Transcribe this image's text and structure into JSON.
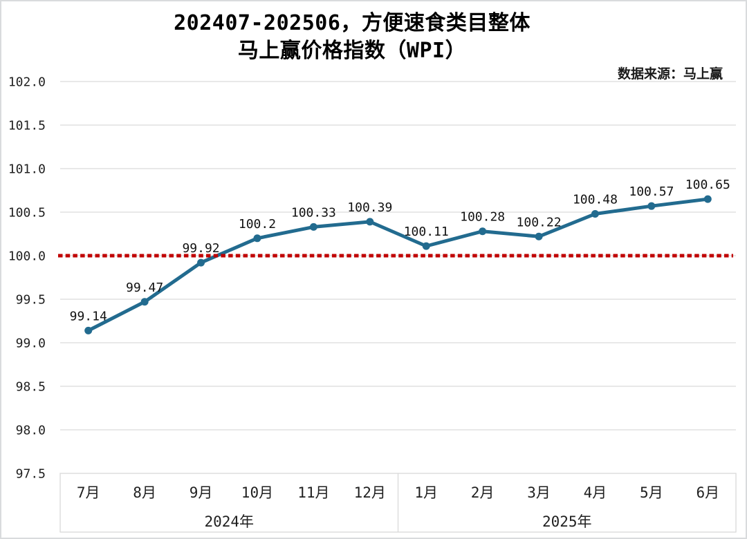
{
  "header": {
    "title_line1": "202407-202506，方便速食类目整体",
    "title_line2": "马上赢价格指数（WPI）",
    "source_note": "数据来源：马上赢"
  },
  "colors": {
    "series_line": "#226b8f",
    "reference_red": "#c00000",
    "grid": "#d9d9d9",
    "text": "#1f1f1f"
  },
  "chart_data": {
    "type": "line",
    "title": "202407-202506，方便速食类目整体 马上赢价格指数（WPI）",
    "source": "数据来源：马上赢",
    "categories": [
      "7月",
      "8月",
      "9月",
      "10月",
      "11月",
      "12月",
      "1月",
      "2月",
      "3月",
      "4月",
      "5月",
      "6月"
    ],
    "year_groups": [
      {
        "label": "2024年",
        "start": 0,
        "count": 6
      },
      {
        "label": "2025年",
        "start": 6,
        "count": 6
      }
    ],
    "series": [
      {
        "name": "马上赢价格指数（WPI）",
        "values": [
          99.14,
          99.47,
          99.92,
          100.2,
          100.33,
          100.39,
          100.11,
          100.28,
          100.22,
          100.48,
          100.57,
          100.65
        ],
        "color": "#226b8f"
      }
    ],
    "point_labels": [
      "99.14",
      "99.47",
      "99.92",
      "100.2",
      "100.33",
      "100.39",
      "100.11",
      "100.28",
      "100.22",
      "100.48",
      "100.57",
      "100.65"
    ],
    "reference_line": {
      "value": 100.0,
      "color": "#c00000",
      "style": "dotted"
    },
    "ylim": [
      97.5,
      102.0
    ],
    "ytick_step": 0.5,
    "ytick_labels": [
      "102.0",
      "101.5",
      "101.0",
      "100.5",
      "100.0",
      "99.5",
      "99.0",
      "98.5",
      "98.0",
      "97.5"
    ],
    "grid": true,
    "grid_color": "#d9d9d9",
    "legend": "none",
    "xlabel": "",
    "ylabel": ""
  }
}
